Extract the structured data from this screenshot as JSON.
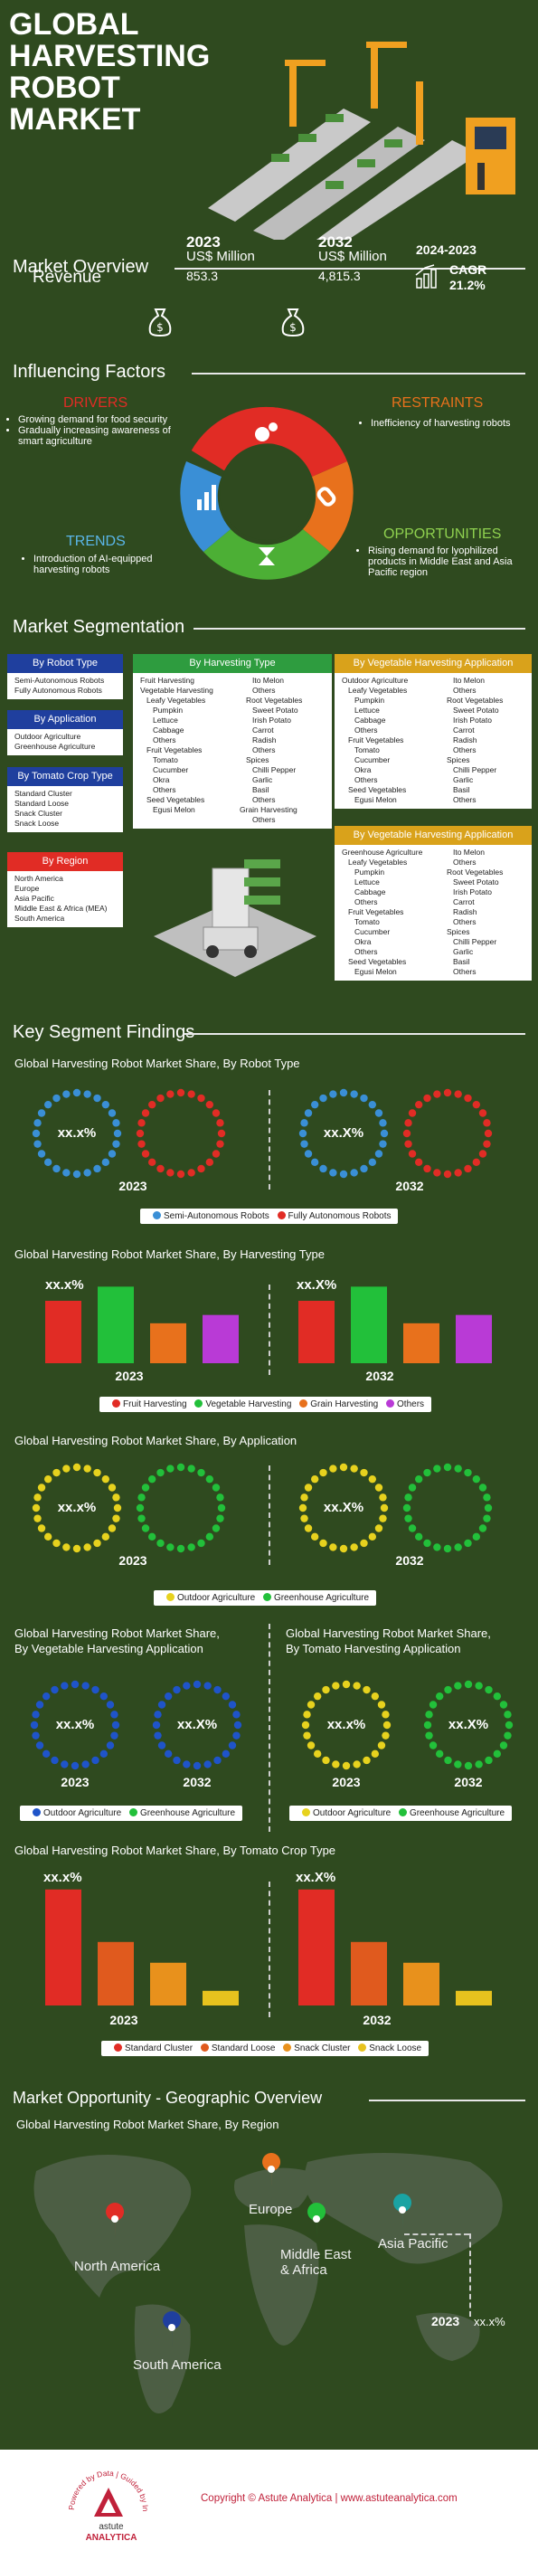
{
  "title_lines": [
    "GLOBAL",
    "HARVESTING",
    "ROBOT",
    "MARKET"
  ],
  "overview": {
    "title": "Market Overview",
    "revenue_label": "Revenue",
    "y2023": "2023",
    "y2023_unit": "US$ Million",
    "y2023_value": "853.3",
    "y2032": "2032",
    "y2032_unit": "US$ Million",
    "y2032_value": "4,815.3",
    "cagr_period": "2024-2023",
    "cagr_label": "CAGR",
    "cagr_value": "21.2%"
  },
  "influencing": {
    "title": "Influencing Factors",
    "drivers_title": "DRIVERS",
    "drivers": [
      "Growing demand for food security",
      "Gradually increasing awareness of smart agriculture"
    ],
    "restraints_title": "RESTRAINTS",
    "restraints": [
      "Inefficiency of harvesting robots"
    ],
    "trends_title": "TRENDS",
    "trends": [
      "Introduction of AI-equipped harvesting robots"
    ],
    "opportunities_title": "OPPORTUNITIES",
    "opportunities": [
      "Rising demand for lyophilized products in Middle East and Asia Pacific region"
    ]
  },
  "segmentation": {
    "title": "Market Segmentation",
    "robot_type": {
      "header": "By Robot Type",
      "items": [
        "Semi-Autonomous Robots",
        "Fully Autonomous Robots"
      ]
    },
    "application": {
      "header": "By Application",
      "items": [
        "Outdoor Agriculture",
        "Greenhouse Agriculture"
      ]
    },
    "tomato_crop": {
      "header": "By Tomato Crop Type",
      "items": [
        "Standard Cluster",
        "Standard Loose",
        "Snack Cluster",
        "Snack Loose"
      ]
    },
    "region": {
      "header": "By Region",
      "items": [
        "North America",
        "Europe",
        "Asia Pacific",
        "Middle East & Africa (MEA)",
        "South America"
      ]
    },
    "harvesting_type": {
      "header": "By Harvesting Type",
      "col1": [
        "Fruit Harvesting",
        "Vegetable Harvesting",
        "Leafy Vegetables",
        "Pumpkin",
        "Lettuce",
        "Cabbage",
        "Others",
        "Fruit Vegetables",
        "Tomato",
        "Cucumber",
        "Okra",
        "Others",
        "Seed Vegetables",
        "Egusi Melon"
      ],
      "col2": [
        "Ito Melon",
        "Others",
        "Root Vegetables",
        "Sweet Potato",
        "Irish Potato",
        "Carrot",
        "Radish",
        "Others",
        "Spices",
        "Chilli Pepper",
        "Garlic",
        "Basil",
        "Others",
        "Grain Harvesting",
        "Others"
      ]
    },
    "veg_app_1": {
      "header": "By Vegetable Harvesting Application",
      "col1": [
        "Outdoor Agriculture",
        "Leafy Vegetables",
        "Pumpkin",
        "Lettuce",
        "Cabbage",
        "Others",
        "Fruit Vegetables",
        "Tomato",
        "Cucumber",
        "Okra",
        "Others",
        "Seed Vegetables",
        "Egusi Melon"
      ],
      "col2": [
        "Ito Melon",
        "Others",
        "Root Vegetables",
        "Sweet Potato",
        "Irish Potato",
        "Carrot",
        "Radish",
        "Others",
        "Spices",
        "Chilli Pepper",
        "Garlic",
        "Basil",
        "Others"
      ]
    },
    "veg_app_2": {
      "header": "By Vegetable Harvesting Application",
      "col1": [
        "Greenhouse Agriculture",
        "Leafy Vegetables",
        "Pumpkin",
        "Lettuce",
        "Cabbage",
        "Others",
        "Fruit Vegetables",
        "Tomato",
        "Cucumber",
        "Okra",
        "Others",
        "Seed Vegetables",
        "Egusi Melon"
      ],
      "col2": [
        "Ito Melon",
        "Others",
        "Root Vegetables",
        "Sweet Potato",
        "Irish Potato",
        "Carrot",
        "Radish",
        "Others",
        "Spices",
        "Chilli Pepper",
        "Garlic",
        "Basil",
        "Others"
      ]
    }
  },
  "findings": {
    "title": "Key Segment Findings",
    "placeholder_a": "xx.x%",
    "placeholder_b": "xx.X%",
    "y2023": "2023",
    "y2032": "2032",
    "robot_title": "Global Harvesting Robot Market Share, By Robot Type",
    "robot_legend": [
      "Semi-Autonomous Robots",
      "Fully Autonomous Robots"
    ],
    "harvest_title": "Global Harvesting Robot Market Share, By Harvesting Type",
    "harvest_legend": [
      "Fruit Harvesting",
      "Vegetable Harvesting",
      "Grain Harvesting",
      "Others"
    ],
    "app_title": "Global Harvesting Robot Market Share, By Application",
    "app_legend": [
      "Outdoor Agriculture",
      "Greenhouse Agriculture"
    ],
    "veg_title_1": "Global Harvesting Robot Market Share,",
    "veg_title_2": "By Vegetable Harvesting Application",
    "tom_app_title_1": "Global Harvesting Robot Market Share,",
    "tom_app_title_2": "By Tomato Harvesting Application",
    "pair_legend": [
      "Outdoor Agriculture",
      "Greenhouse Agriculture"
    ],
    "tomato_title": "Global Harvesting Robot Market Share, By Tomato Crop Type",
    "tomato_legend": [
      "Standard Cluster",
      "Standard Loose",
      "Snack Cluster",
      "Snack Loose"
    ]
  },
  "chart_data": [
    {
      "type": "bar",
      "categories": [
        "Fruit Harvesting",
        "Vegetable Harvesting",
        "Grain Harvesting",
        "Others"
      ],
      "series": [
        {
          "values": [
            0.75,
            0.92,
            0.48,
            0.58
          ]
        }
      ],
      "groups": [
        "2023",
        "2032"
      ]
    },
    {
      "type": "bar",
      "categories": [
        "Standard Cluster",
        "Standard Loose",
        "Snack Cluster",
        "Snack Loose"
      ],
      "series": [
        {
          "values": [
            0.95,
            0.52,
            0.35,
            0.12
          ]
        }
      ],
      "groups": [
        "2023",
        "2032"
      ]
    }
  ],
  "geo": {
    "title": "Market Opportunity - Geographic Overview",
    "subtitle": "Global Harvesting Robot Market Share, By Region",
    "regions": [
      "North America",
      "Europe",
      "Middle East & Africa",
      "Asia Pacific",
      "South America"
    ],
    "callout_year": "2023",
    "callout_value": "xx.x%"
  },
  "footer": {
    "copyright": "Copyright © Astute Analytica  |  www.astuteanalytica.com",
    "logo_top": "Powered by Data | Guided by Intelligence",
    "logo_name": "astute",
    "logo_name2": "ANALYTICA"
  },
  "colors": {
    "bg": "#2f4a1f",
    "red": "#e12c25",
    "green": "#22c03a",
    "orange": "#e8711c",
    "purple": "#b93ad6",
    "blue": "#3a8fd6",
    "yellow": "#e7d21e",
    "navy": "#1f3f9e",
    "teal": "#1aa3a3"
  }
}
